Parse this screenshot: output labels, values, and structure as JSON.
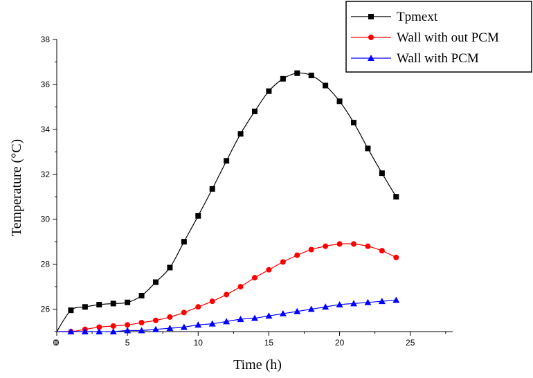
{
  "chart_data": {
    "type": "line",
    "title": "",
    "xlabel": "Time (h)",
    "ylabel": "Temperature (°C)",
    "xlim": [
      0,
      28
    ],
    "ylim": [
      25,
      38
    ],
    "xticks": [
      0,
      5,
      10,
      15,
      20,
      25
    ],
    "yticks": [
      26,
      28,
      30,
      32,
      34,
      36,
      38
    ],
    "legend_position": "top-right",
    "grid": false,
    "series": [
      {
        "name": "Tpmext",
        "color": "#000000",
        "marker": "square",
        "x": [
          0,
          1,
          2,
          3,
          4,
          5,
          6,
          7,
          8,
          9,
          10,
          11,
          12,
          13,
          14,
          15,
          16,
          17,
          18,
          19,
          20,
          21,
          22,
          23,
          24
        ],
        "values": [
          25,
          25.95,
          26.1,
          26.2,
          26.25,
          26.3,
          26.6,
          27.2,
          27.85,
          29.0,
          30.15,
          31.35,
          32.6,
          33.8,
          34.8,
          35.7,
          36.25,
          36.5,
          36.4,
          35.95,
          35.25,
          34.3,
          33.15,
          32.05,
          31.0
        ]
      },
      {
        "name": "Wall with out PCM",
        "color": "#ff0000",
        "marker": "circle",
        "x": [
          0,
          1,
          2,
          3,
          4,
          5,
          6,
          7,
          8,
          9,
          10,
          11,
          12,
          13,
          14,
          15,
          16,
          17,
          18,
          19,
          20,
          21,
          22,
          23,
          24
        ],
        "values": [
          25,
          25.0,
          25.1,
          25.2,
          25.25,
          25.3,
          25.4,
          25.5,
          25.65,
          25.85,
          26.1,
          26.35,
          26.65,
          27.0,
          27.4,
          27.75,
          28.1,
          28.4,
          28.65,
          28.8,
          28.9,
          28.9,
          28.8,
          28.6,
          28.3
        ]
      },
      {
        "name": "Wall with PCM",
        "color": "#0000ff",
        "marker": "triangle",
        "x": [
          0,
          1,
          2,
          3,
          4,
          5,
          6,
          7,
          8,
          9,
          10,
          11,
          12,
          13,
          14,
          15,
          16,
          17,
          18,
          19,
          20,
          21,
          22,
          23,
          24
        ],
        "values": [
          25,
          25.0,
          25.0,
          25.0,
          25.0,
          25.05,
          25.05,
          25.1,
          25.15,
          25.2,
          25.3,
          25.35,
          25.45,
          25.55,
          25.6,
          25.7,
          25.8,
          25.9,
          26.0,
          26.1,
          26.2,
          26.25,
          26.3,
          26.35,
          26.4
        ]
      }
    ]
  }
}
